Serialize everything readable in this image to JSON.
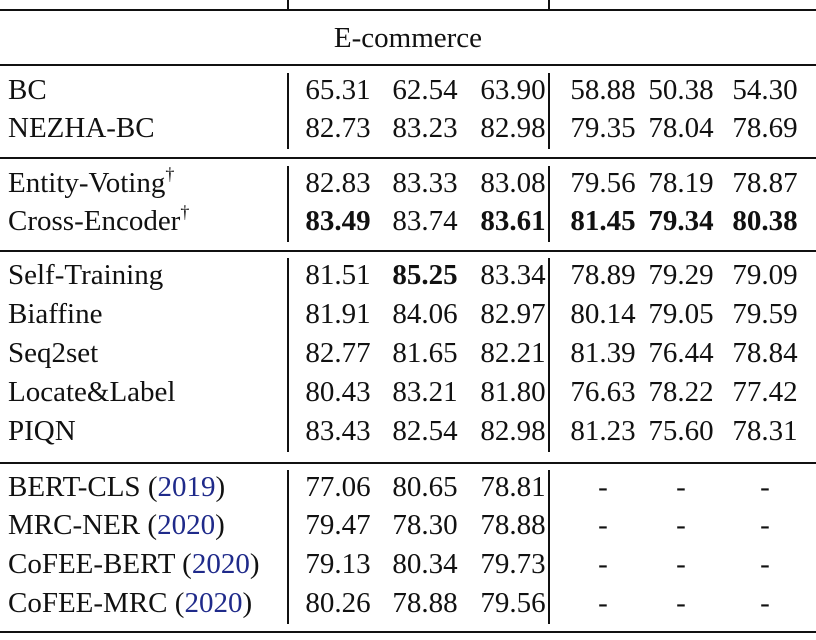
{
  "table": {
    "section_title": "E-commerce",
    "groups": [
      {
        "rows": [
          {
            "name": "BC",
            "values": [
              "65.31",
              "62.54",
              "63.90",
              "58.88",
              "50.38",
              "54.30"
            ],
            "bold": [
              false,
              false,
              false,
              false,
              false,
              false
            ]
          },
          {
            "name": "NEZHA-BC",
            "values": [
              "82.73",
              "83.23",
              "82.98",
              "79.35",
              "78.04",
              "78.69"
            ],
            "bold": [
              false,
              false,
              false,
              false,
              false,
              false
            ]
          }
        ]
      },
      {
        "rows": [
          {
            "name": "Entity-Voting",
            "sup": "†",
            "values": [
              "82.83",
              "83.33",
              "83.08",
              "79.56",
              "78.19",
              "78.87"
            ],
            "bold": [
              false,
              false,
              false,
              false,
              false,
              false
            ]
          },
          {
            "name": "Cross-Encoder",
            "sup": "†",
            "values": [
              "83.49",
              "83.74",
              "83.61",
              "81.45",
              "79.34",
              "80.38"
            ],
            "bold": [
              true,
              false,
              true,
              true,
              true,
              true
            ]
          }
        ]
      },
      {
        "rows": [
          {
            "name": "Self-Training",
            "values": [
              "81.51",
              "85.25",
              "83.34",
              "78.89",
              "79.29",
              "79.09"
            ],
            "bold": [
              false,
              true,
              false,
              false,
              false,
              false
            ]
          },
          {
            "name": "Biaffine",
            "values": [
              "81.91",
              "84.06",
              "82.97",
              "80.14",
              "79.05",
              "79.59"
            ],
            "bold": [
              false,
              false,
              false,
              false,
              false,
              false
            ]
          },
          {
            "name": "Seq2set",
            "values": [
              "82.77",
              "81.65",
              "82.21",
              "81.39",
              "76.44",
              "78.84"
            ],
            "bold": [
              false,
              false,
              false,
              false,
              false,
              false
            ]
          },
          {
            "name": "Locate&Label",
            "values": [
              "80.43",
              "83.21",
              "81.80",
              "76.63",
              "78.22",
              "77.42"
            ],
            "bold": [
              false,
              false,
              false,
              false,
              false,
              false
            ]
          },
          {
            "name": "PIQN",
            "values": [
              "83.43",
              "82.54",
              "82.98",
              "81.23",
              "75.60",
              "78.31"
            ],
            "bold": [
              false,
              false,
              false,
              false,
              false,
              false
            ]
          }
        ]
      },
      {
        "rows": [
          {
            "name": "BERT-CLS",
            "cite": "2019",
            "values": [
              "77.06",
              "80.65",
              "78.81",
              "-",
              "-",
              "-"
            ],
            "bold": [
              false,
              false,
              false,
              false,
              false,
              false
            ]
          },
          {
            "name": "MRC-NER",
            "cite": "2020",
            "values": [
              "79.47",
              "78.30",
              "78.88",
              "-",
              "-",
              "-"
            ],
            "bold": [
              false,
              false,
              false,
              false,
              false,
              false
            ]
          },
          {
            "name": "CoFEE-BERT",
            "cite": "2020",
            "values": [
              "79.13",
              "80.34",
              "79.73",
              "-",
              "-",
              "-"
            ],
            "bold": [
              false,
              false,
              false,
              false,
              false,
              false
            ]
          },
          {
            "name": "CoFEE-MRC",
            "cite": "2020",
            "values": [
              "80.26",
              "78.88",
              "79.56",
              "-",
              "-",
              "-"
            ],
            "bold": [
              false,
              false,
              false,
              false,
              false,
              false
            ]
          }
        ]
      }
    ]
  }
}
